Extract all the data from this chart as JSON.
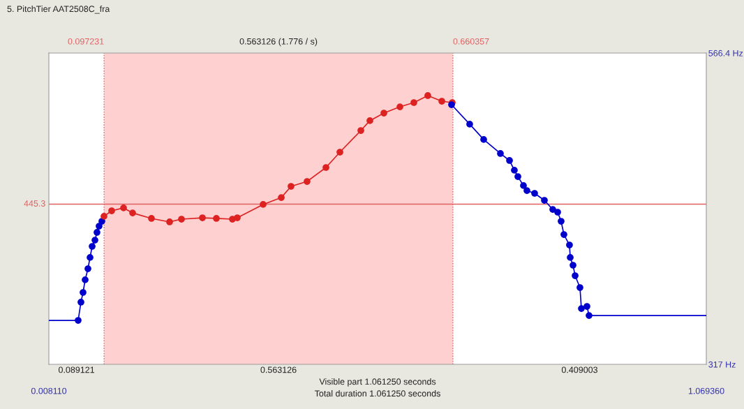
{
  "chart_data": {
    "type": "line",
    "title": "5. PitchTier AAT2508C_fra",
    "xlim": [
      0.00811,
      1.06936
    ],
    "xticks": [
      {
        "value": 0.00811,
        "label": "0.008110"
      },
      {
        "value": 1.06936,
        "label": "1.069360"
      }
    ],
    "ylim": [
      317,
      566.4
    ],
    "yticks": [
      {
        "value": 317,
        "label": "317 Hz"
      },
      {
        "value": 566.4,
        "label": "566.4 Hz"
      }
    ],
    "grid": false,
    "legend": false,
    "line_style": "solid",
    "series": [
      {
        "color": "#0000cc",
        "x": [
          0.00811,
          0.0554
        ],
        "values": [
          352.2,
          352.2
        ]
      },
      {
        "color": "#0000cc",
        "marker": "circle",
        "x": [
          0.0554,
          0.0599,
          0.0633,
          0.0667,
          0.0712,
          0.0746,
          0.078,
          0.0825,
          0.0858,
          0.0892,
          0.0937
        ],
        "values": [
          352.2,
          366.8,
          374.6,
          384.7,
          393.6,
          402.6,
          411.5,
          416.5,
          422.7,
          427.7,
          431.6
        ]
      },
      {
        "color": "#dd2222",
        "marker": "circle",
        "x": [
          0.0971,
          0.1095,
          0.1287,
          0.1433,
          0.1737,
          0.203,
          0.2222,
          0.256,
          0.2785,
          0.3044,
          0.3123,
          0.354,
          0.3833,
          0.399,
          0.4249,
          0.4554,
          0.4779,
          0.5117,
          0.5263,
          0.5489,
          0.5748,
          0.5973,
          0.6198,
          0.6424,
          0.6593
        ],
        "values": [
          435.6,
          440.0,
          442.3,
          438.3,
          433.9,
          431.1,
          433.3,
          434.4,
          433.9,
          433.3,
          434.4,
          445.1,
          450.6,
          459.6,
          463.5,
          474.7,
          487.0,
          504.3,
          512.2,
          518.3,
          523.3,
          526.7,
          532.3,
          527.8,
          526.7
        ]
      },
      {
        "color": "#0000cc",
        "marker": "circle",
        "x": [
          0.6581,
          0.6874,
          0.71,
          0.737,
          0.7517,
          0.7595,
          0.7652,
          0.7742,
          0.7798,
          0.7922,
          0.808,
          0.8215,
          0.8294,
          0.835,
          0.8395,
          0.8485,
          0.8497,
          0.8542,
          0.8576,
          0.8654,
          0.8677,
          0.8767,
          0.8801
        ],
        "values": [
          525.0,
          509.4,
          497.1,
          485.9,
          480.3,
          472.5,
          467.4,
          460.2,
          456.2,
          454.0,
          448.4,
          441.1,
          438.9,
          431.6,
          421.0,
          412.6,
          402.6,
          396.4,
          388.0,
          378.5,
          361.7,
          363.4,
          356.1
        ]
      },
      {
        "color": "#0000cc",
        "x": [
          0.8801,
          1.06936
        ],
        "values": [
          356.1,
          356.1
        ]
      }
    ],
    "ref_lines": [
      {
        "axis": "y",
        "value": 445.3,
        "label": "445.3",
        "color": "#e06060"
      },
      {
        "axis": "x",
        "value": 0.097231,
        "label": "0.097231",
        "color": "#e06060",
        "line_style": "dotted"
      },
      {
        "axis": "x",
        "value": 0.660357,
        "label": "0.660357",
        "color": "#e06060",
        "line_style": "dotted"
      }
    ],
    "bands": [
      {
        "axis": "x",
        "from": 0.097231,
        "to": 0.660357,
        "label": "0.563126 (1.776 / s)",
        "color": "#ffd0d0"
      }
    ],
    "annotations": [
      "0.089121",
      "0.563126",
      "0.409003",
      "Visible part 1.061250 seconds",
      "Total duration 1.061250 seconds"
    ]
  }
}
